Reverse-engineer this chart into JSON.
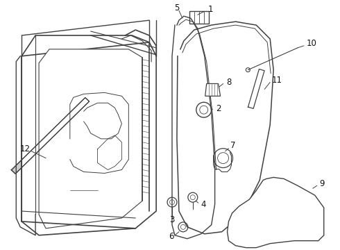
{
  "background_color": "#ffffff",
  "line_color": "#404040",
  "label_color": "#111111",
  "label_fontsize": 8.5,
  "fig_width": 4.9,
  "fig_height": 3.6,
  "dpi": 100
}
